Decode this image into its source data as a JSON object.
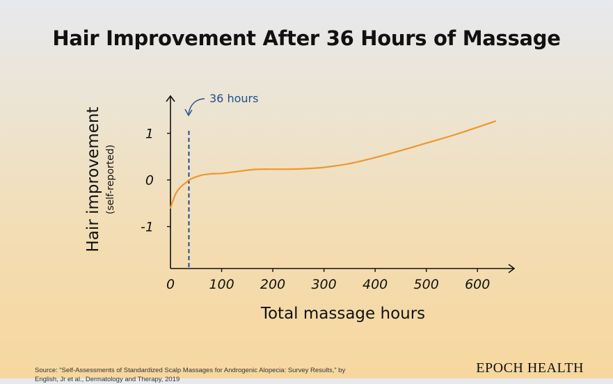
{
  "chart_data": {
    "type": "line",
    "title": "Hair Improvement After 36 Hours of Massage",
    "ylabel": "Hair improvement",
    "ylabel_sub": "(self-reported)",
    "xlabel": "Total massage hours",
    "xlim": [
      0,
      665
    ],
    "ylim": [
      -1.9,
      1.8
    ],
    "x_ticks": [
      0,
      100,
      200,
      300,
      400,
      500,
      600
    ],
    "x_tick_labels": [
      "0",
      "100",
      "200",
      "300",
      "400",
      "500",
      "600"
    ],
    "y_ticks": [
      1,
      0,
      -1
    ],
    "y_tick_labels": [
      "1",
      "0",
      "-1"
    ],
    "grid": false,
    "series": [
      {
        "x": [
          0,
          10,
          20,
          30,
          40,
          60,
          80,
          100,
          130,
          160,
          180,
          200,
          230,
          260,
          300,
          350,
          400,
          450,
          500,
          550,
          600,
          635
        ],
        "y": [
          -0.6,
          -0.3,
          -0.15,
          -0.06,
          0.02,
          0.1,
          0.13,
          0.14,
          0.18,
          0.22,
          0.23,
          0.23,
          0.23,
          0.24,
          0.27,
          0.35,
          0.48,
          0.63,
          0.79,
          0.95,
          1.13,
          1.26
        ],
        "color": "#f0962e"
      }
    ],
    "annotations": [
      {
        "text": "36 hours",
        "x": 36,
        "color": "#1f4e8c"
      }
    ]
  },
  "source_text": "Source: “Self-Assessments of Standardized Scalp Massages for Androgenic Alopecia: Survey Results,” by English, Jr et al., Dermatology and Therapy, 2019",
  "brand": "EPOCH HEALTH"
}
